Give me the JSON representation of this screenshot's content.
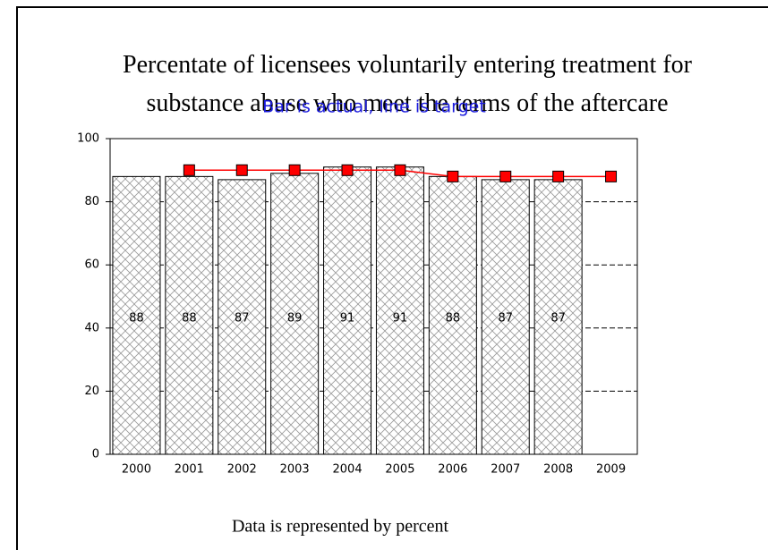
{
  "chart_data": {
    "type": "bar",
    "title": "Percentate of licensees voluntarily entering treatment for substance abuse who meet the terms of the aftercare",
    "subtitle": "Bar is actual, line is target",
    "footer": "Data is represented by percent",
    "categories": [
      "2000",
      "2001",
      "2002",
      "2003",
      "2004",
      "2005",
      "2006",
      "2007",
      "2008",
      "2009"
    ],
    "series": [
      {
        "type": "bar",
        "color": "#808080",
        "values": [
          88,
          88,
          87,
          89,
          91,
          91,
          88,
          87,
          87,
          null
        ]
      },
      {
        "type": "line",
        "color": "#ff0000",
        "values": [
          null,
          90,
          90,
          90,
          90,
          90,
          88,
          88,
          88,
          88
        ]
      }
    ],
    "ylim": [
      0,
      100
    ],
    "yticks": [
      0,
      20,
      40,
      60,
      80,
      100
    ],
    "grid": true
  }
}
